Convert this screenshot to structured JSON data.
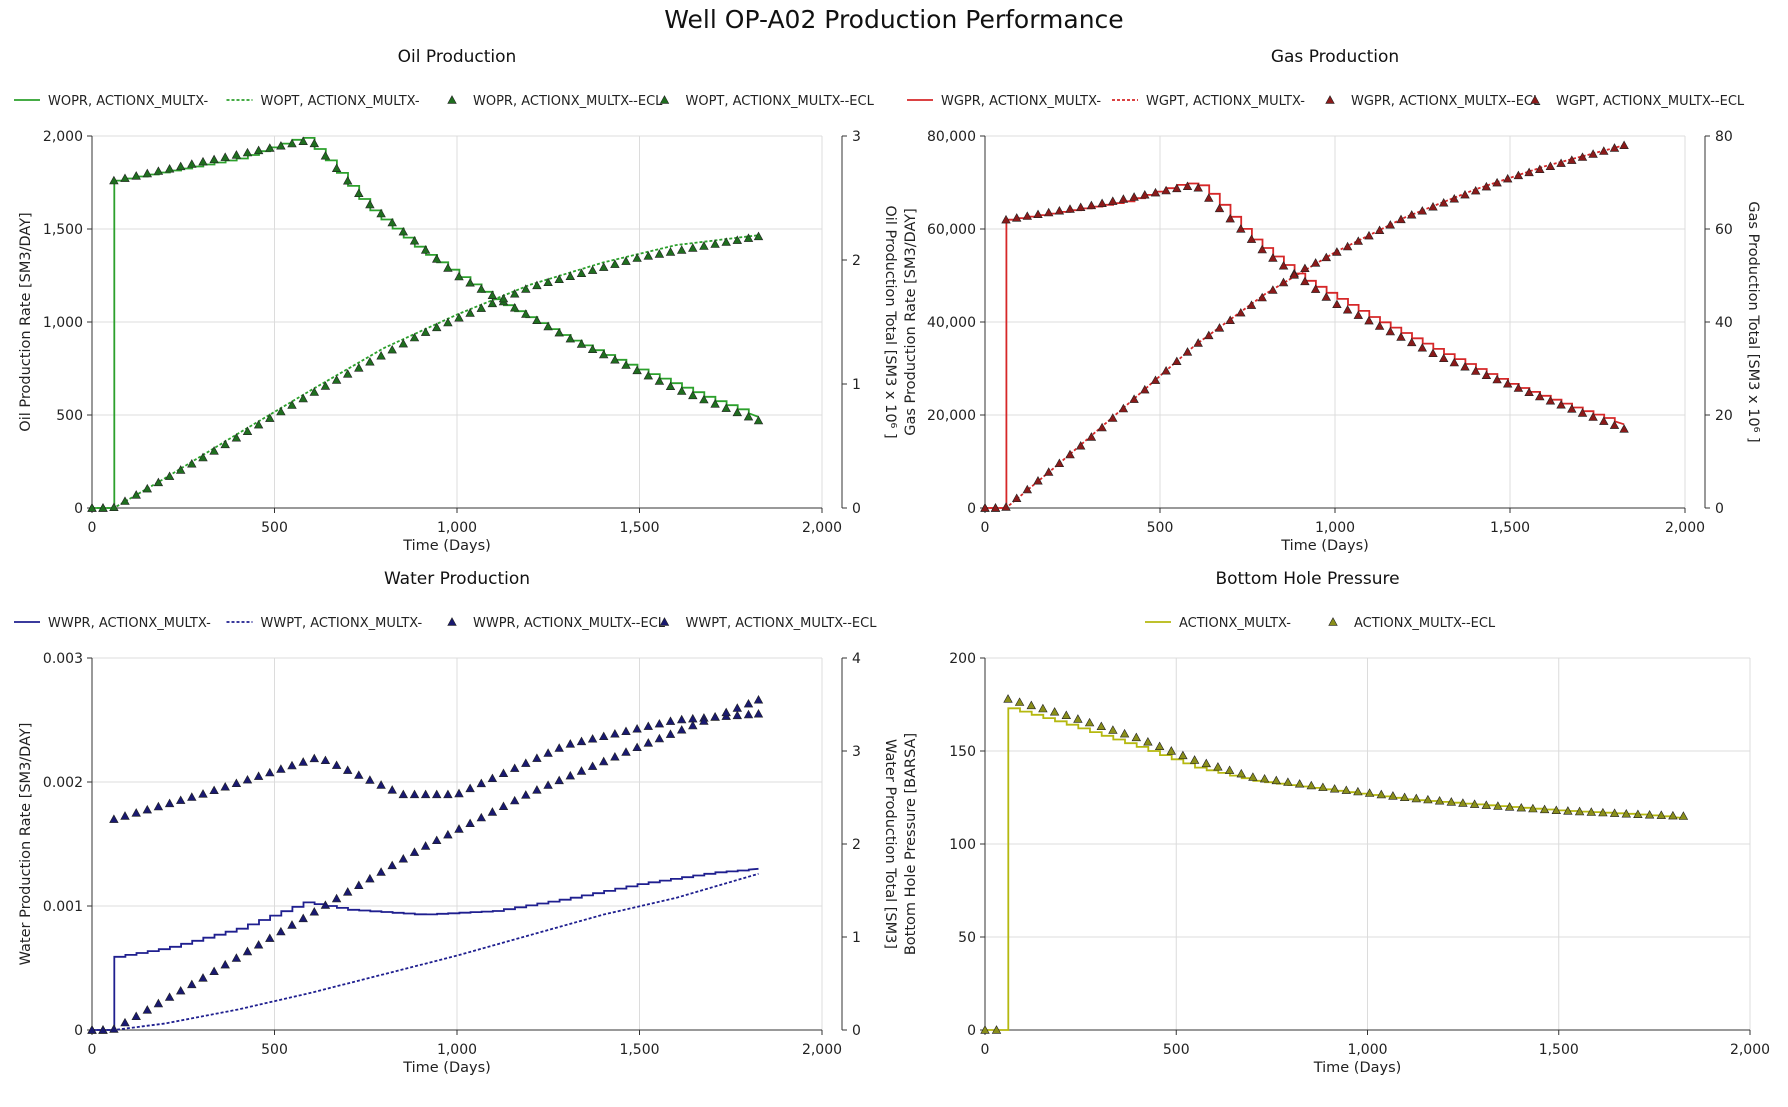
{
  "title": "Well OP-A02 Production Performance",
  "chart_data": [
    {
      "type": "line",
      "title": "Oil Production",
      "xlabel": "Time (Days)",
      "ylabel": "Oil Production Rate [SM3/DAY]",
      "y2label": "Oil Production Total [SM3 x 10⁶ ]",
      "xlim": [
        0,
        2000
      ],
      "ylim": [
        0,
        2000
      ],
      "y2lim": [
        0,
        3
      ],
      "xticks": [
        "0",
        "500",
        "1,000",
        "1,500",
        "2,000"
      ],
      "yticks": [
        "0",
        "500",
        "1,000",
        "1,500",
        "2,000"
      ],
      "y2ticks": [
        "0",
        "1",
        "2",
        "3"
      ],
      "grid": true,
      "legend": "top",
      "color": "#2ca02c",
      "marker_color": "#1f6e1f",
      "series": [
        {
          "name": "WOPR, ACTIONX_MULTX-",
          "axis": "left",
          "style": "solid",
          "step": true,
          "x": [
            0,
            60,
            60,
            200,
            400,
            550,
            580,
            650,
            750,
            900,
            1100,
            1300,
            1500,
            1700,
            1826
          ],
          "y": [
            0,
            0,
            1760,
            1810,
            1880,
            1980,
            1990,
            1850,
            1620,
            1380,
            1120,
            910,
            740,
            580,
            490
          ]
        },
        {
          "name": "WOPT, ACTIONX_MULTX-",
          "axis": "right",
          "style": "dotted",
          "x": [
            0,
            60,
            200,
            400,
            600,
            800,
            1000,
            1200,
            1400,
            1600,
            1826
          ],
          "y": [
            0,
            0,
            0.24,
            0.6,
            0.95,
            1.29,
            1.56,
            1.8,
            1.98,
            2.12,
            2.2
          ]
        },
        {
          "name": "WOPR, ACTIONX_MULTX--ECL",
          "axis": "left",
          "style": "marker",
          "x": [
            0,
            30,
            60,
            300,
            600,
            750,
            1000,
            1300,
            1600,
            1826
          ],
          "y": [
            0,
            0,
            1760,
            1860,
            1980,
            1650,
            1250,
            920,
            640,
            470
          ]
        },
        {
          "name": "WOPT, ACTIONX_MULTX--ECL",
          "axis": "right",
          "style": "marker",
          "x": [
            0,
            30,
            60,
            300,
            600,
            900,
            1200,
            1500,
            1826
          ],
          "y": [
            0,
            0,
            0.005,
            0.4,
            0.92,
            1.4,
            1.78,
            2.02,
            2.19
          ]
        }
      ]
    },
    {
      "type": "line",
      "title": "Gas Production",
      "xlabel": "Time (Days)",
      "ylabel": "Gas Production Rate [SM3/DAY]",
      "y2label": "Gas Production Total [SM3 x 10⁶ ]",
      "xlim": [
        0,
        2000
      ],
      "ylim": [
        0,
        80000
      ],
      "y2lim": [
        0,
        80
      ],
      "xticks": [
        "0",
        "500",
        "1,000",
        "1,500",
        "2,000"
      ],
      "yticks": [
        "0",
        "20,000",
        "40,000",
        "60,000",
        "80,000"
      ],
      "y2ticks": [
        "0",
        "20",
        "40",
        "60",
        "80"
      ],
      "grid": true,
      "legend": "top",
      "color": "#d62728",
      "marker_color": "#8b1a1a",
      "series": [
        {
          "name": "WGPR, ACTIONX_MULTX-",
          "axis": "left",
          "style": "solid",
          "step": true,
          "x": [
            0,
            60,
            60,
            200,
            400,
            550,
            600,
            650,
            750,
            900,
            1100,
            1300,
            1500,
            1700,
            1826
          ],
          "y": [
            0,
            0,
            62000,
            63500,
            66000,
            69500,
            70000,
            67000,
            58500,
            49500,
            41000,
            33500,
            26500,
            21000,
            18000
          ]
        },
        {
          "name": "WGPT, ACTIONX_MULTX-",
          "axis": "right",
          "style": "dotted",
          "x": [
            0,
            60,
            200,
            400,
            600,
            800,
            1000,
            1200,
            1400,
            1600,
            1826
          ],
          "y": [
            0,
            0,
            8.8,
            21.8,
            35.0,
            46.0,
            55.0,
            62.5,
            68.5,
            73.5,
            78.0
          ]
        },
        {
          "name": "WGPR, ACTIONX_MULTX--ECL",
          "axis": "left",
          "style": "marker",
          "x": [
            0,
            30,
            60,
            300,
            600,
            800,
            1000,
            1300,
            1600,
            1826
          ],
          "y": [
            0,
            0,
            62000,
            65000,
            69500,
            55000,
            44000,
            32500,
            23500,
            17000
          ]
        },
        {
          "name": "WGPT, ACTIONX_MULTX--ECL",
          "axis": "right",
          "style": "marker",
          "x": [
            0,
            30,
            60,
            300,
            600,
            900,
            1200,
            1500,
            1826
          ],
          "y": [
            0,
            0,
            0.2,
            15.0,
            35.0,
            51.0,
            62.5,
            71.0,
            78.0
          ]
        }
      ]
    },
    {
      "type": "line",
      "title": "Water Production",
      "xlabel": "Time (Days)",
      "ylabel": "Water Production Rate [SM3/DAY]",
      "y2label": "Water Production Total [SM3]",
      "xlim": [
        0,
        2000
      ],
      "ylim": [
        0,
        0.003
      ],
      "y2lim": [
        0,
        4
      ],
      "xticks": [
        "0",
        "500",
        "1,000",
        "1,500",
        "2,000"
      ],
      "yticks": [
        "0",
        "0.001",
        "0.002",
        "0.003"
      ],
      "y2ticks": [
        "0",
        "1",
        "2",
        "3",
        "4"
      ],
      "grid": true,
      "legend": "top",
      "color": "#1f1f8f",
      "marker_color": "#191970",
      "series": [
        {
          "name": "WWPR, ACTIONX_MULTX-",
          "axis": "left",
          "style": "solid",
          "step": true,
          "x": [
            0,
            60,
            60,
            200,
            400,
            580,
            700,
            900,
            1100,
            1300,
            1500,
            1700,
            1826
          ],
          "y": [
            0,
            0,
            0.00059,
            0.00066,
            0.00082,
            0.00103,
            0.00097,
            0.00093,
            0.00096,
            0.00106,
            0.00118,
            0.00127,
            0.0013
          ]
        },
        {
          "name": "WWPT, ACTIONX_MULTX-",
          "axis": "right",
          "style": "dotted",
          "x": [
            0,
            60,
            200,
            400,
            600,
            800,
            1000,
            1200,
            1400,
            1600,
            1826
          ],
          "y": [
            0,
            0,
            0.07,
            0.22,
            0.4,
            0.6,
            0.8,
            1.02,
            1.24,
            1.42,
            1.68
          ]
        },
        {
          "name": "WWPR, ACTIONX_MULTX--ECL",
          "axis": "left",
          "style": "marker",
          "x": [
            0,
            30,
            60,
            300,
            620,
            850,
            1000,
            1300,
            1600,
            1826
          ],
          "y": [
            0,
            0,
            0.0017,
            0.0019,
            0.0022,
            0.0019,
            0.0019,
            0.0023,
            0.0025,
            0.00255
          ]
        },
        {
          "name": "WWPT, ACTIONX_MULTX--ECL",
          "axis": "right",
          "style": "marker",
          "x": [
            0,
            30,
            60,
            300,
            600,
            900,
            1200,
            1500,
            1826
          ],
          "y": [
            0,
            0,
            0.01,
            0.55,
            1.25,
            1.95,
            2.55,
            3.05,
            3.55
          ]
        }
      ]
    },
    {
      "type": "line",
      "title": "Bottom Hole Pressure",
      "xlabel": "Time (Days)",
      "ylabel": "Bottom Hole Pressure [BARSA]",
      "xlim": [
        0,
        2000
      ],
      "ylim": [
        0,
        200
      ],
      "xticks": [
        "0",
        "500",
        "1,000",
        "1,500",
        "2,000"
      ],
      "yticks": [
        "0",
        "50",
        "100",
        "150",
        "200"
      ],
      "grid": true,
      "legend": "top",
      "color": "#b5b80f",
      "marker_color": "#8a8f1a",
      "series": [
        {
          "name": "ACTIONX_MULTX-",
          "axis": "left",
          "style": "solid",
          "step": true,
          "x": [
            0,
            60,
            60,
            200,
            400,
            550,
            700,
            900,
            1100,
            1300,
            1500,
            1700,
            1826
          ],
          "y": [
            0,
            0,
            173,
            165,
            152,
            141,
            134,
            129,
            124,
            121,
            118,
            116,
            114
          ]
        },
        {
          "name": "ACTIONX_MULTX--ECL",
          "axis": "left",
          "style": "marker",
          "x": [
            0,
            30,
            60,
            200,
            400,
            550,
            700,
            900,
            1100,
            1300,
            1500,
            1700,
            1826
          ],
          "y": [
            0,
            0,
            178,
            170,
            157,
            145,
            136,
            130,
            125,
            121,
            118,
            116,
            115
          ]
        }
      ]
    }
  ]
}
